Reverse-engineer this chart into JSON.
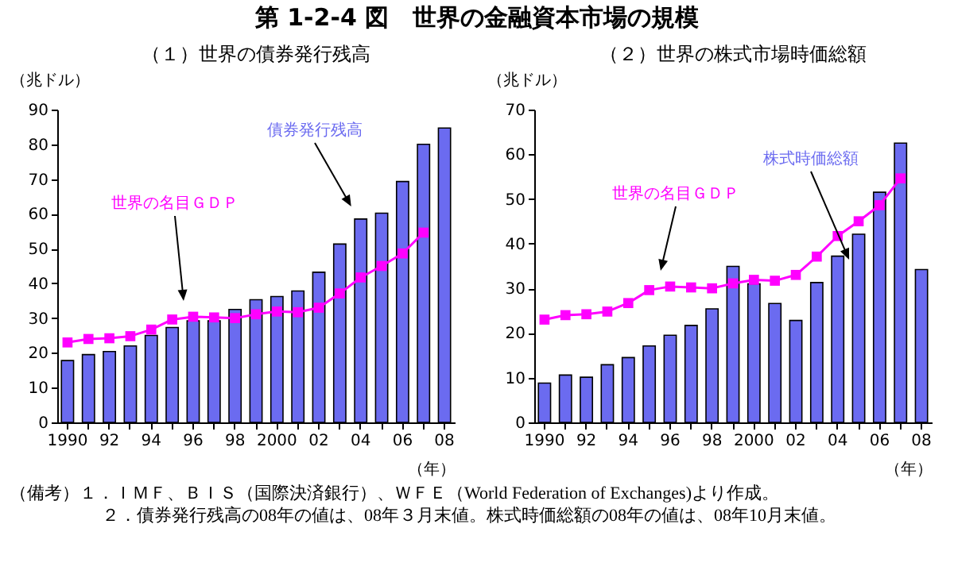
{
  "chart_data": [
    {
      "type": "bar",
      "title": "第 1-2-4 図　世界の金融資本市場の規模",
      "subtitle": "（１）世界の債券発行残高",
      "ylabel": "（兆ドル）",
      "xlabel": "（年）",
      "categories": [
        "1990",
        null,
        "92",
        null,
        "94",
        null,
        "96",
        null,
        "98",
        null,
        "2000",
        null,
        "02",
        null,
        "04",
        null,
        "06",
        null,
        "08"
      ],
      "ylim": [
        0,
        90
      ],
      "yticks": [
        0,
        10,
        20,
        30,
        40,
        50,
        60,
        70,
        80,
        90
      ],
      "marker": "square",
      "series": [
        {
          "name": "債券発行残高",
          "color": "#6b6bf0",
          "values": [
            17.8,
            19.5,
            20.4,
            22.0,
            25.0,
            27.3,
            29.2,
            29.2,
            32.5,
            35.3,
            36.2,
            37.8,
            43.2,
            51.3,
            58.5,
            60.2,
            69.3,
            80.0,
            84.7
          ]
        },
        {
          "name": "世界の名目ＧＤＰ",
          "type": "line",
          "color": "#ff00ff",
          "values": [
            23.0,
            24.0,
            24.2,
            24.8,
            26.7,
            29.6,
            30.4,
            30.2,
            30.0,
            31.1,
            31.9,
            31.7,
            33.0,
            37.1,
            41.7,
            45.0,
            48.6,
            54.6,
            null
          ]
        }
      ]
    },
    {
      "type": "bar",
      "subtitle": "（２）世界の株式市場時価総額",
      "ylabel": "（兆ドル）",
      "xlabel": "（年）",
      "categories": [
        "1990",
        null,
        "92",
        null,
        "94",
        null,
        "96",
        null,
        "98",
        null,
        "2000",
        null,
        "02",
        null,
        "04",
        null,
        "06",
        null,
        "08"
      ],
      "ylim": [
        0,
        70
      ],
      "yticks": [
        0,
        10,
        20,
        30,
        40,
        50,
        60,
        70
      ],
      "marker": "square",
      "annotations": [
        "（備考）１．ＩＭＦ、ＢＩＳ（国際決済銀行）、ＷＦＥ（World Federation of Exchanges)より作成。",
        "２．債券発行残高の08年の値は、08年３月末値。株式時価総額の08年の値は、08年10月末値。"
      ],
      "series": [
        {
          "name": "株式時価総額",
          "color": "#6b6bf0",
          "values": [
            8.8,
            10.6,
            10.1,
            12.9,
            14.5,
            17.1,
            19.5,
            21.7,
            25.4,
            34.9,
            31.0,
            26.6,
            22.8,
            31.3,
            37.2,
            42.1,
            51.5,
            62.5,
            34.2
          ]
        },
        {
          "name": "世界の名目ＧＤＰ",
          "type": "line",
          "color": "#ff00ff",
          "values": [
            23.0,
            24.0,
            24.2,
            24.8,
            26.7,
            29.6,
            30.4,
            30.2,
            30.0,
            31.1,
            31.9,
            31.7,
            33.0,
            37.1,
            41.7,
            45.0,
            48.6,
            54.6,
            null
          ]
        }
      ]
    }
  ]
}
